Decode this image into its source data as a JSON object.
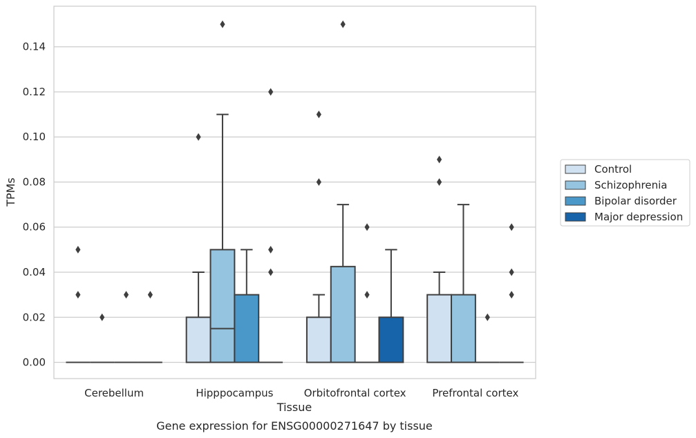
{
  "caption": "Gene expression for ENSG00000271647 by tissue",
  "chart_data": {
    "type": "box",
    "xlabel": "Tissue",
    "ylabel": "TPMs",
    "ylim": [
      -0.0072,
      0.158
    ],
    "grid": "horizontal",
    "legend_position": "right",
    "yticks": [
      "0.00",
      "0.02",
      "0.04",
      "0.06",
      "0.08",
      "0.10",
      "0.12",
      "0.14"
    ],
    "categories": [
      "Cerebellum",
      "Hipppocampus",
      "Orbitofrontal cortex",
      "Prefrontal cortex"
    ],
    "series": [
      {
        "name": "Control",
        "color": "#d0e1f2",
        "boxes": [
          {
            "q1": 0,
            "median": 0,
            "q3": 0,
            "whisker_low": 0,
            "whisker_high": 0,
            "outliers": [
              0.05,
              0.03
            ]
          },
          {
            "q1": 0,
            "median": 0,
            "q3": 0.02,
            "whisker_low": 0,
            "whisker_high": 0.04,
            "outliers": [
              0.1
            ]
          },
          {
            "q1": 0,
            "median": 0,
            "q3": 0.02,
            "whisker_low": 0,
            "whisker_high": 0.03,
            "outliers": [
              0.11,
              0.08
            ]
          },
          {
            "q1": 0,
            "median": 0,
            "q3": 0.03,
            "whisker_low": 0,
            "whisker_high": 0.04,
            "outliers": [
              0.09,
              0.08
            ]
          }
        ]
      },
      {
        "name": "Schizophrenia",
        "color": "#94c4df",
        "boxes": [
          {
            "q1": 0,
            "median": 0,
            "q3": 0,
            "whisker_low": 0,
            "whisker_high": 0,
            "outliers": [
              0.02
            ]
          },
          {
            "q1": 0,
            "median": 0.015,
            "q3": 0.05,
            "whisker_low": 0,
            "whisker_high": 0.11,
            "outliers": [
              0.15
            ]
          },
          {
            "q1": 0,
            "median": 0,
            "q3": 0.0425,
            "whisker_low": 0,
            "whisker_high": 0.07,
            "outliers": [
              0.15
            ]
          },
          {
            "q1": 0,
            "median": 0,
            "q3": 0.03,
            "whisker_low": 0,
            "whisker_high": 0.07,
            "outliers": []
          }
        ]
      },
      {
        "name": "Bipolar disorder",
        "color": "#4a98c9",
        "boxes": [
          {
            "q1": 0,
            "median": 0,
            "q3": 0,
            "whisker_low": 0,
            "whisker_high": 0,
            "outliers": [
              0.03
            ]
          },
          {
            "q1": 0,
            "median": 0,
            "q3": 0.03,
            "whisker_low": 0,
            "whisker_high": 0.05,
            "outliers": []
          },
          {
            "q1": 0,
            "median": 0,
            "q3": 0,
            "whisker_low": 0,
            "whisker_high": 0,
            "outliers": [
              0.06,
              0.03
            ]
          },
          {
            "q1": 0,
            "median": 0,
            "q3": 0,
            "whisker_low": 0,
            "whisker_high": 0,
            "outliers": [
              0.02
            ]
          }
        ]
      },
      {
        "name": "Major depression",
        "color": "#1764ab",
        "boxes": [
          {
            "q1": 0,
            "median": 0,
            "q3": 0,
            "whisker_low": 0,
            "whisker_high": 0,
            "outliers": [
              0.03
            ]
          },
          {
            "q1": 0,
            "median": 0,
            "q3": 0,
            "whisker_low": 0,
            "whisker_high": 0,
            "outliers": [
              0.12,
              0.05,
              0.04
            ]
          },
          {
            "q1": 0,
            "median": 0,
            "q3": 0.02,
            "whisker_low": 0,
            "whisker_high": 0.05,
            "outliers": []
          },
          {
            "q1": 0,
            "median": 0,
            "q3": 0,
            "whisker_low": 0,
            "whisker_high": 0,
            "outliers": [
              0.06,
              0.04,
              0.03
            ]
          }
        ]
      }
    ]
  }
}
